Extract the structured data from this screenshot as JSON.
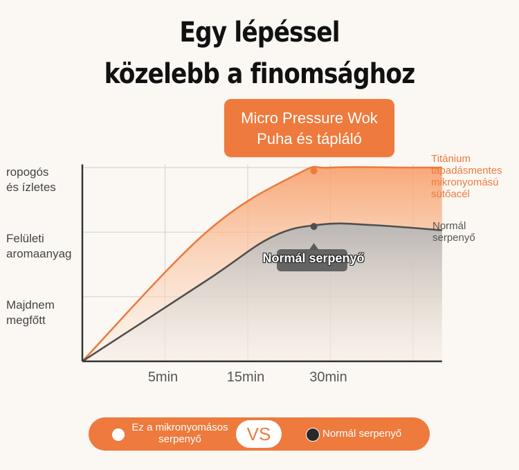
{
  "header": {
    "title_line1": "Egy lépéssel",
    "title_line2": "közelebb a finomsághoz"
  },
  "callout": {
    "line1": "Micro Pressure Wok",
    "line2": "Puha és tápláló"
  },
  "y_labels": [
    {
      "line1": "ropogós",
      "line2": "és ízletes"
    },
    {
      "line1": "Felületi",
      "line2": "aromaanyag"
    },
    {
      "line1": "Majdnem",
      "line2": "megfőtt"
    }
  ],
  "series_labels": {
    "orange": [
      "Titánium",
      "tapadásmentes",
      "mikronyomású",
      "sütőacél"
    ],
    "gray": [
      "Normál",
      "serpenyő"
    ]
  },
  "tooltip": "Normál serpenyő",
  "legend": {
    "left_line1": "Ez a mikronyomásos",
    "left_line2": "serpenyő",
    "vs": "VS",
    "right": "Normál serpenyő"
  },
  "colors": {
    "accent": "#ee7a3d",
    "gray_series": "#4f4f4f",
    "background": "#fbf8f3"
  },
  "chart_data": {
    "type": "line",
    "x_categories": [
      "5min",
      "15min",
      "30min"
    ],
    "y_levels": [
      "Majdnem megfőtt",
      "Felületi aromaanyag",
      "ropogós és ízletes"
    ],
    "y_scale": "qualitative",
    "series": [
      {
        "name": "Titánium tapadásmentes mikronyomású sütőacél",
        "color": "#ee7a3d",
        "points": [
          [
            0,
            0
          ],
          [
            1.5,
            2.0
          ],
          [
            2.6,
            2.9
          ],
          [
            3.0,
            3.0
          ],
          [
            4.0,
            3.0
          ],
          [
            4.35,
            3.0
          ]
        ],
        "marker_x": 2.8
      },
      {
        "name": "Normál serpenyő",
        "color": "#4f4f4f",
        "points": [
          [
            0,
            0
          ],
          [
            1.5,
            1.25
          ],
          [
            2.3,
            1.93
          ],
          [
            2.9,
            2.12
          ],
          [
            3.5,
            2.11
          ],
          [
            4.35,
            2.03
          ]
        ],
        "marker_x": 2.8
      }
    ],
    "xlim": [
      0,
      4.35
    ],
    "ylim": [
      0,
      3.2
    ],
    "grid": true
  }
}
